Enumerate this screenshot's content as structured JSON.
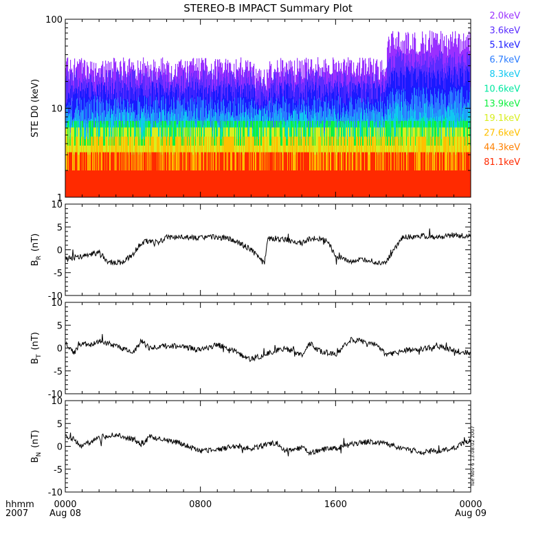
{
  "title": "STEREO-B IMPACT Summary Plot",
  "stamp": "Tue Nov  6 13:08:02 2007",
  "chart_data": [
    {
      "type": "area",
      "ylabel": "STE D0 (keV)",
      "yscale": "log",
      "ylim": [
        1,
        100
      ],
      "yticks": [
        "1",
        "10",
        "100"
      ],
      "legend_placement": "right",
      "series": [
        {
          "name": "2.0keV",
          "color": "#9a30ff",
          "level_first": 30,
          "level_second": 60
        },
        {
          "name": "3.6keV",
          "color": "#5a2cff",
          "level_first": 22,
          "level_second": 36
        },
        {
          "name": "5.1keV",
          "color": "#1a1aff",
          "level_first": 16,
          "level_second": 24
        },
        {
          "name": "6.7keV",
          "color": "#2a7cff",
          "level_first": 11,
          "level_second": 14
        },
        {
          "name": "8.3keV",
          "color": "#10c8f0",
          "level_first": 8,
          "level_second": 9.5
        },
        {
          "name": "10.6keV",
          "color": "#00e8a0",
          "level_first": 6,
          "level_second": 6.5
        },
        {
          "name": "13.9keV",
          "color": "#10f040",
          "level_first": 4.5,
          "level_second": 4.5
        },
        {
          "name": "19.1keV",
          "color": "#d8ee20",
          "level_first": 3.8,
          "level_second": 3.8
        },
        {
          "name": "27.6keV",
          "color": "#ffc000",
          "level_first": 3.0,
          "level_second": 3.0
        },
        {
          "name": "44.3keV",
          "color": "#ff8000",
          "level_first": 2.0,
          "level_second": 2.0
        },
        {
          "name": "81.1keV",
          "color": "#ff2a00",
          "level_first": 2.0,
          "level_second": 2.0
        }
      ]
    },
    {
      "type": "line",
      "ylabel": "B",
      "ylabel_sub": "R",
      "ylabel_unit": "(nT)",
      "ylim": [
        -10,
        10
      ],
      "yticks": [
        "-10",
        "-5",
        "0",
        "5",
        "10"
      ],
      "x_hours": [
        0,
        1,
        2,
        2.5,
        3,
        3.5,
        4,
        4.5,
        5,
        5.5,
        6,
        7,
        8,
        9,
        10,
        11,
        11.8,
        12,
        13,
        14,
        14.5,
        15,
        15.5,
        16,
        17,
        18,
        18.5,
        19,
        20,
        21,
        22,
        23,
        24
      ],
      "values": [
        -2,
        -1.5,
        -0.5,
        -2.5,
        -3,
        -2.5,
        -1,
        1.5,
        2,
        1.5,
        2.8,
        2.7,
        2.6,
        2.8,
        2.2,
        0,
        -2.8,
        2.6,
        2.2,
        1.5,
        2.5,
        2.4,
        2.0,
        -1.5,
        -2.5,
        -2.2,
        -3,
        -2.5,
        2.8,
        3.0,
        2.8,
        3.2,
        3.0
      ],
      "color": "#000000"
    },
    {
      "type": "line",
      "ylabel": "B",
      "ylabel_sub": "T",
      "ylabel_unit": "(nT)",
      "ylim": [
        -10,
        10
      ],
      "yticks": [
        "-10",
        "-5",
        "0",
        "5",
        "10"
      ],
      "x_hours": [
        0,
        0.5,
        1,
        1.5,
        2,
        3,
        4,
        4.5,
        5,
        6,
        7,
        8,
        9,
        10,
        10.5,
        11,
        12,
        13,
        14,
        14.5,
        15,
        16,
        16.5,
        17,
        17.5,
        18,
        18.5,
        19,
        20,
        21,
        22,
        23,
        24
      ],
      "values": [
        1,
        -1,
        1,
        0.5,
        1.5,
        0.5,
        -1,
        1.5,
        0,
        0.5,
        0.3,
        -0.5,
        0.8,
        -0.5,
        -1.8,
        -2.5,
        -1.2,
        0,
        -1.5,
        1,
        -0.5,
        -1.5,
        0.5,
        2,
        1.5,
        1.2,
        0.5,
        -1.5,
        -0.5,
        -0.3,
        0.5,
        -0.5,
        -1.2
      ],
      "color": "#000000"
    },
    {
      "type": "line",
      "ylabel": "B",
      "ylabel_sub": "N",
      "ylabel_unit": "(nT)",
      "ylim": [
        -10,
        10
      ],
      "yticks": [
        "-10",
        "-5",
        "0",
        "5",
        "10"
      ],
      "x_hours": [
        0,
        0.5,
        1,
        2,
        3,
        4,
        4.5,
        5,
        6,
        7,
        8,
        9,
        10,
        11,
        12,
        12.5,
        13,
        14,
        14.5,
        15,
        16,
        17,
        18,
        18.5,
        19,
        20,
        21,
        22,
        23,
        24
      ],
      "values": [
        2.5,
        1.5,
        0,
        2,
        2.5,
        1.5,
        0.5,
        2,
        1.5,
        0.5,
        -1,
        -0.8,
        0,
        -0.5,
        0.5,
        0.8,
        -0.8,
        -0.3,
        -1.5,
        -0.8,
        -0.5,
        0.5,
        1,
        0.8,
        0.5,
        -0.5,
        -1.2,
        -1.0,
        -0.5,
        1.5
      ],
      "color": "#000000"
    }
  ],
  "xaxis": {
    "range_hours": [
      0,
      24
    ],
    "row_label_top": "hhmm",
    "row_label_bottom": "2007",
    "ticks": [
      {
        "hour": 0,
        "top": "0000",
        "bottom": "Aug 08"
      },
      {
        "hour": 8,
        "top": "0800",
        "bottom": ""
      },
      {
        "hour": 16,
        "top": "1600",
        "bottom": ""
      },
      {
        "hour": 24,
        "top": "0000",
        "bottom": "Aug 09"
      }
    ]
  }
}
